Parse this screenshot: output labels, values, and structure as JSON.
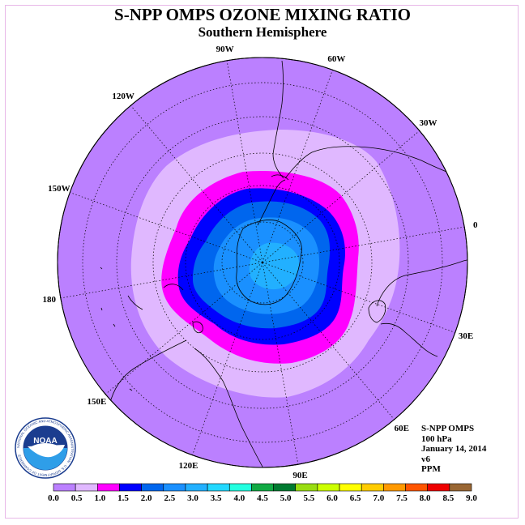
{
  "title": "S-NPP OMPS OZONE MIXING RATIO",
  "subtitle": "Southern Hemisphere",
  "map": {
    "projection": "polar-stereographic",
    "hemisphere": "south",
    "background_color": "#bb80ff",
    "longitude_labels": [
      "90W",
      "60W",
      "30W",
      "0",
      "30E",
      "60E",
      "90E",
      "120E",
      "150E",
      "180",
      "150W",
      "120W"
    ]
  },
  "info": {
    "instrument": "S-NPP OMPS",
    "level": "100 hPa",
    "date": "January 14, 2014",
    "version": "v6",
    "units": "PPM"
  },
  "logo": {
    "text": "NOAA",
    "ring_text": "NATIONAL OCEANIC AND ATMOSPHERIC ADMINISTRATION · U.S. DEPARTMENT OF COMMERCE"
  },
  "legend": {
    "ticks": [
      "0.0",
      "0.5",
      "1.0",
      "1.5",
      "2.0",
      "2.5",
      "3.0",
      "3.5",
      "4.0",
      "4.5",
      "5.0",
      "5.5",
      "6.0",
      "6.5",
      "7.0",
      "7.5",
      "8.0",
      "8.5",
      "9.0"
    ],
    "colors": [
      "#bb80ff",
      "#e0b8ff",
      "#ff00ff",
      "#0000ff",
      "#0066ee",
      "#1a90ff",
      "#22b0ff",
      "#22d8ff",
      "#22ffe0",
      "#11aa44",
      "#007a30",
      "#99dd11",
      "#ccff00",
      "#ffff00",
      "#ffcc00",
      "#ff9900",
      "#ff5500",
      "#ee0000",
      "#996633"
    ]
  },
  "contours": [
    {
      "level": "0.5",
      "color": "#e0b8ff"
    },
    {
      "level": "1.0",
      "color": "#ff00ff"
    },
    {
      "level": "1.5",
      "color": "#0000ff"
    },
    {
      "level": "2.0",
      "color": "#0066ee"
    },
    {
      "level": "2.5",
      "color": "#1a90ff"
    },
    {
      "level": "3.0",
      "color": "#22b0ff"
    }
  ]
}
